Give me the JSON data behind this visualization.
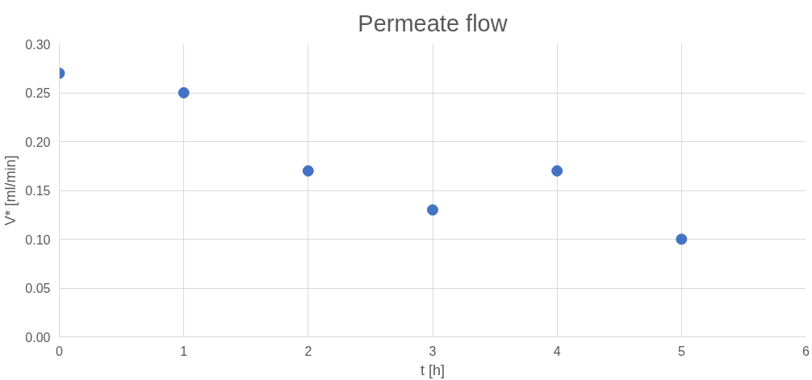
{
  "chart_data": {
    "type": "scatter",
    "title": "Permeate flow",
    "xlabel": "t [h]",
    "ylabel": "V* [ml/min]",
    "x": [
      0,
      1,
      2,
      3,
      4,
      5
    ],
    "series": [
      {
        "color": "#4472c4",
        "values": [
          0.27,
          0.25,
          0.17,
          0.13,
          0.17,
          0.1
        ]
      }
    ],
    "xlim": [
      0,
      6
    ],
    "xticks": [
      0,
      1,
      2,
      3,
      4,
      5,
      6
    ],
    "ylim": [
      0,
      0.3
    ],
    "yticks": [
      {
        "value": 0,
        "label": "0.00"
      },
      {
        "value": 0.05,
        "label": "0.05"
      },
      {
        "value": 0.1,
        "label": "0.10"
      },
      {
        "value": 0.15,
        "label": "0.15"
      },
      {
        "value": 0.2,
        "label": "0.20"
      },
      {
        "value": 0.25,
        "label": "0.25"
      },
      {
        "value": 0.3,
        "label": "0.30"
      }
    ],
    "grid": true,
    "marker": "circle"
  }
}
